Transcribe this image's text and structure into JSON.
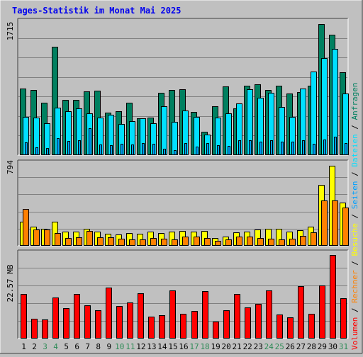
{
  "chart_data": {
    "type": "bar",
    "title": "Tages-Statistik im Monat Mai 2025",
    "colors": {
      "background": "#c0c0c0",
      "title": "#0000ee",
      "hits": "#008060",
      "files": "#00e0ff",
      "pages": "#00a0ff",
      "visits": "#ffff00",
      "sites": "#ff8000",
      "kbytes": "#ff0000",
      "weekend_day": "#2e8b57",
      "weekday": "#000000",
      "rest_label": "#000000"
    },
    "categories": [
      "1",
      "2",
      "3",
      "4",
      "5",
      "6",
      "7",
      "8",
      "9",
      "10",
      "11",
      "12",
      "13",
      "14",
      "15",
      "16",
      "17",
      "18",
      "19",
      "20",
      "21",
      "22",
      "23",
      "24",
      "25",
      "26",
      "27",
      "28",
      "29",
      "30",
      "31"
    ],
    "weekend_days": [
      "3",
      "4",
      "10",
      "11",
      "17",
      "18",
      "24",
      "25",
      "31"
    ],
    "label_parts": {
      "hits": "Anfragen",
      "files": "Dateien",
      "pages": "Seiten",
      "visits": "Besuche",
      "sites": "Rechner",
      "kbytes": "Volumen",
      "separator": "/"
    },
    "panels": [
      {
        "id": "requests",
        "max_label": "1715",
        "max_value": 1715,
        "series": [
          {
            "name": "Anfragen",
            "key": "hits",
            "values": [
              865,
              845,
              680,
              1405,
              710,
              715,
              825,
              830,
              550,
              570,
              680,
              470,
              485,
              805,
              845,
              855,
              560,
              300,
              635,
              890,
              600,
              895,
              915,
              845,
              900,
              795,
              815,
              900,
              1710,
              1570,
              1075
            ]
          },
          {
            "name": "Dateien",
            "key": "files",
            "values": [
              495,
              480,
              410,
              615,
              565,
              605,
              540,
              480,
              520,
              400,
              440,
              470,
              405,
              635,
              430,
              575,
              495,
              260,
              485,
              540,
              670,
              850,
              740,
              805,
              620,
              490,
              860,
              1080,
              1265,
              1385,
              795
            ]
          },
          {
            "name": "Seiten",
            "key": "pages",
            "values": [
              160,
              90,
              85,
              215,
              175,
              185,
              345,
              130,
              120,
              140,
              130,
              145,
              140,
              70,
              60,
              150,
              100,
              145,
              120,
              115,
              190,
              185,
              170,
              190,
              165,
              170,
              185,
              140,
              195,
              230,
              145
            ]
          }
        ]
      },
      {
        "id": "visits",
        "max_label": "794",
        "max_value": 794,
        "series": [
          {
            "name": "Besuche",
            "key": "visits",
            "values": [
              235,
              185,
              160,
              230,
              130,
              130,
              160,
              135,
              110,
              105,
              120,
              115,
              135,
              120,
              135,
              140,
              135,
              140,
              70,
              85,
              125,
              135,
              155,
              160,
              160,
              135,
              150,
              185,
              600,
              790,
              420
            ]
          },
          {
            "name": "Rechner",
            "key": "sites",
            "values": [
              360,
              155,
              155,
              120,
              70,
              75,
              140,
              80,
              80,
              65,
              55,
              55,
              70,
              60,
              55,
              85,
              85,
              70,
              40,
              55,
              85,
              85,
              70,
              65,
              55,
              65,
              90,
              125,
              440,
              440,
              370
            ]
          }
        ]
      },
      {
        "id": "volume",
        "max_label": "22.57 MB",
        "max_value": 22.57,
        "series": [
          {
            "name": "Volumen",
            "key": "kbytes",
            "values": [
              11.95,
              5.22,
              4.95,
              10.9,
              8.15,
              11.95,
              8.85,
              7.5,
              13.6,
              8.65,
              9.6,
              12.1,
              5.8,
              6.2,
              12.9,
              6.5,
              7.35,
              12.75,
              4.4,
              7.6,
              11.95,
              8.25,
              9.25,
              12.85,
              6.35,
              5.65,
              14.05,
              6.55,
              14.35,
              22.49,
              10.8
            ]
          }
        ]
      }
    ]
  }
}
